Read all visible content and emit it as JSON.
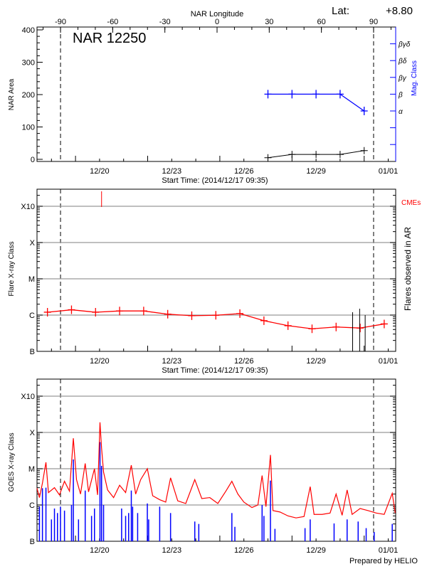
{
  "colors": {
    "axis": "#000000",
    "mag": "#0000ff",
    "flare": "#ff0000",
    "goes_long": "#ff0000",
    "goes_short": "#0000ff",
    "grid": "#999999"
  },
  "chart_data": [
    {
      "type": "line",
      "title": "NAR 12250",
      "top_axis_label": "NAR Longitude",
      "lat_label": "Lat:",
      "lat_value": "+8.80",
      "xlabel": "Start Time: (2014/12/17 09:35)",
      "ylabel": "NAR Area",
      "y2label": "Mag. Class",
      "ylim": [
        0,
        400
      ],
      "yticks": [
        "0",
        "100",
        "200",
        "300",
        "400"
      ],
      "xticks": [
        "12/20",
        "12/23",
        "12/26",
        "12/29",
        "01/01"
      ],
      "xtick_dates": [
        "2014-12-20T00:00",
        "2014-12-23T00:00",
        "2014-12-26T00:00",
        "2014-12-29T00:00",
        "2015-01-01T00:00"
      ],
      "lon_ticks": [
        "-90",
        "-60",
        "-30",
        "0",
        "30",
        "60",
        "90"
      ],
      "limb_longitudes": [
        -90,
        90
      ],
      "mag_classes": [
        "α",
        "β",
        "βγ",
        "βδ",
        "βγδ"
      ],
      "area_series": {
        "x": [
          "2014-12-27T00:00",
          "2014-12-28T00:00",
          "2014-12-29T00:00",
          "2014-12-30T00:00",
          "2014-12-31T00:00"
        ],
        "values": [
          5,
          15,
          15,
          15,
          27
        ]
      },
      "mag_series": {
        "x": [
          "2014-12-27T00:00",
          "2014-12-28T00:00",
          "2014-12-29T00:00",
          "2014-12-30T00:00",
          "2014-12-31T00:00"
        ],
        "values": [
          "β",
          "β",
          "β",
          "β",
          "α"
        ]
      }
    },
    {
      "type": "line",
      "xlabel": "Start Time: (2014/12/17 09:35)",
      "ylabel": "Flare X-ray Class",
      "y2label": "Flares observed in AR",
      "cme_label": "CMEs",
      "yscale": "log",
      "ylim": [
        1e-07,
        0.0016
      ],
      "yticks": [
        "B",
        "C",
        "M",
        "X",
        "X10"
      ],
      "ytick_values": [
        1e-07,
        1e-06,
        1e-05,
        0.0001,
        0.001
      ],
      "grid": true,
      "xticks": [
        "12/20",
        "12/23",
        "12/26",
        "12/29",
        "01/01"
      ],
      "flare_series": {
        "x": [
          "2014-12-17T20:00",
          "2014-12-18T20:00",
          "2014-12-19T20:00",
          "2014-12-20T20:00",
          "2014-12-21T20:00",
          "2014-12-22T20:00",
          "2014-12-23T20:00",
          "2014-12-24T20:00",
          "2014-12-25T20:00",
          "2014-12-26T20:00",
          "2014-12-27T20:00",
          "2014-12-28T20:00",
          "2014-12-29T20:00",
          "2014-12-30T20:00",
          "2014-12-31T20:00"
        ],
        "values": [
          1.2e-06,
          1.4e-06,
          1.2e-06,
          1.3e-06,
          1.3e-06,
          1.06e-06,
          9.6e-07,
          9.9e-07,
          1.1e-06,
          7e-07,
          5.1e-07,
          4.2e-07,
          4.7e-07,
          4.4e-07,
          5.7e-07
        ]
      },
      "cmes": [
        "2014-12-20T02:00"
      ],
      "flares_observed": {
        "x": [
          "2014-12-30T12:30",
          "2014-12-30T19:30",
          "2014-12-31T01:00"
        ],
        "values": [
          1.2e-06,
          1.5e-06,
          1e-06
        ]
      }
    },
    {
      "type": "line",
      "ylabel": "GOES X-ray Class",
      "yscale": "log",
      "ylim": [
        1e-07,
        0.0016
      ],
      "yticks": [
        "B",
        "C",
        "M",
        "X",
        "X10"
      ],
      "ytick_values": [
        1e-07,
        1e-06,
        1e-05,
        0.0001,
        0.001
      ],
      "grid": true,
      "xticks": [
        "12/20",
        "12/23",
        "12/26",
        "12/29",
        "01/01"
      ],
      "footer": "Prepared by HELIO",
      "long_channel": [
        [
          "2014-12-17T09:35",
          2.9e-06
        ],
        [
          "2014-12-17T12:00",
          1.6e-06
        ],
        [
          "2014-12-17T15:00",
          4e-06
        ],
        [
          "2014-12-17T18:30",
          1.5e-05
        ],
        [
          "2014-12-17T21:00",
          2.2e-06
        ],
        [
          "2014-12-18T03:00",
          3e-06
        ],
        [
          "2014-12-18T08:00",
          1.9e-06
        ],
        [
          "2014-12-18T13:00",
          4.5e-06
        ],
        [
          "2014-12-18T18:00",
          2.4e-06
        ],
        [
          "2014-12-18T21:50",
          6.9e-05
        ],
        [
          "2014-12-19T01:00",
          5e-06
        ],
        [
          "2014-12-19T05:00",
          2e-06
        ],
        [
          "2014-12-19T09:40",
          1.4e-05
        ],
        [
          "2014-12-19T13:00",
          2.3e-06
        ],
        [
          "2014-12-19T18:55",
          1e-05
        ],
        [
          "2014-12-19T22:00",
          1.9e-06
        ],
        [
          "2014-12-20T00:25",
          0.00019
        ],
        [
          "2014-12-20T02:00",
          3.7e-05
        ],
        [
          "2014-12-20T04:00",
          8e-06
        ],
        [
          "2014-12-20T08:00",
          2.6e-06
        ],
        [
          "2014-12-20T14:00",
          1.6e-06
        ],
        [
          "2014-12-20T20:00",
          3.5e-06
        ],
        [
          "2014-12-21T02:00",
          2.2e-06
        ],
        [
          "2014-12-21T07:40",
          1.25e-05
        ],
        [
          "2014-12-21T12:00",
          2e-06
        ],
        [
          "2014-12-21T17:00",
          5e-06
        ],
        [
          "2014-12-21T23:40",
          1e-05
        ],
        [
          "2014-12-22T05:00",
          1.8e-06
        ],
        [
          "2014-12-22T12:00",
          1.4e-06
        ],
        [
          "2014-12-22T18:00",
          1.2e-06
        ],
        [
          "2014-12-22T22:50",
          5.6e-06
        ],
        [
          "2014-12-23T06:00",
          1.3e-06
        ],
        [
          "2014-12-23T14:00",
          1.1e-06
        ],
        [
          "2014-12-23T23:00",
          5e-06
        ],
        [
          "2014-12-24T06:00",
          1.5e-06
        ],
        [
          "2014-12-24T14:00",
          1.6e-06
        ],
        [
          "2014-12-24T22:00",
          1.1e-06
        ],
        [
          "2014-12-25T06:00",
          2.4e-06
        ],
        [
          "2014-12-25T12:00",
          4.5e-06
        ],
        [
          "2014-12-25T18:00",
          2e-06
        ],
        [
          "2014-12-26T00:00",
          1.2e-06
        ],
        [
          "2014-12-26T08:00",
          8.5e-07
        ],
        [
          "2014-12-26T14:00",
          1e-06
        ],
        [
          "2014-12-26T18:10",
          6.5e-06
        ],
        [
          "2014-12-26T22:00",
          9e-07
        ],
        [
          "2014-12-27T02:30",
          2.4e-05
        ],
        [
          "2014-12-27T05:00",
          7e-07
        ],
        [
          "2014-12-27T12:00",
          6.4e-07
        ],
        [
          "2014-12-27T20:00",
          5e-07
        ],
        [
          "2014-12-28T04:00",
          4.4e-07
        ],
        [
          "2014-12-28T12:00",
          4.8e-07
        ],
        [
          "2014-12-28T18:10",
          3.2e-06
        ],
        [
          "2014-12-28T22:00",
          5.5e-07
        ],
        [
          "2014-12-29T06:00",
          5.5e-07
        ],
        [
          "2014-12-29T14:00",
          6e-07
        ],
        [
          "2014-12-29T20:00",
          2e-06
        ],
        [
          "2014-12-30T02:00",
          5.2e-07
        ],
        [
          "2014-12-30T07:00",
          2.6e-06
        ],
        [
          "2014-12-30T12:00",
          5.5e-07
        ],
        [
          "2014-12-30T20:00",
          8e-07
        ],
        [
          "2014-12-31T04:00",
          7e-07
        ],
        [
          "2014-12-31T12:00",
          6e-07
        ],
        [
          "2014-12-31T20:00",
          5.5e-07
        ],
        [
          "2015-01-01T04:00",
          2.1e-06
        ],
        [
          "2015-01-01T07:00",
          6e-07
        ]
      ],
      "short_channel": [
        [
          "2014-12-17T12:00",
          9e-07
        ],
        [
          "2014-12-17T15:00",
          2.9e-06
        ],
        [
          "2014-12-17T18:30",
          3e-06
        ],
        [
          "2014-12-18T00:00",
          4e-07
        ],
        [
          "2014-12-18T03:00",
          8e-07
        ],
        [
          "2014-12-18T06:00",
          6e-07
        ],
        [
          "2014-12-18T09:00",
          9e-07
        ],
        [
          "2014-12-18T13:00",
          7e-07
        ],
        [
          "2014-12-18T20:00",
          1e-06
        ],
        [
          "2014-12-18T21:50",
          1.8e-05
        ],
        [
          "2014-12-19T03:00",
          4e-07
        ],
        [
          "2014-12-19T09:40",
          2.5e-06
        ],
        [
          "2014-12-19T16:00",
          5e-07
        ],
        [
          "2014-12-19T18:55",
          8e-07
        ],
        [
          "2014-12-20T00:25",
          5.4e-05
        ],
        [
          "2014-12-20T02:00",
          1.2e-05
        ],
        [
          "2014-12-20T04:00",
          1e-06
        ],
        [
          "2014-12-20T22:00",
          8e-07
        ],
        [
          "2014-12-21T02:00",
          5e-07
        ],
        [
          "2014-12-21T05:00",
          6e-07
        ],
        [
          "2014-12-21T07:40",
          2.5e-06
        ],
        [
          "2014-12-21T09:00",
          9e-07
        ],
        [
          "2014-12-21T14:00",
          6e-07
        ],
        [
          "2014-12-21T23:40",
          1.1e-06
        ],
        [
          "2014-12-22T01:00",
          4e-07
        ],
        [
          "2014-12-22T12:00",
          9e-07
        ],
        [
          "2014-12-22T22:50",
          6e-07
        ],
        [
          "2014-12-23T23:00",
          3.5e-07
        ],
        [
          "2014-12-24T03:00",
          3e-07
        ],
        [
          "2014-12-25T12:00",
          6e-07
        ],
        [
          "2014-12-25T15:00",
          2.5e-07
        ],
        [
          "2014-12-26T18:10",
          1e-06
        ],
        [
          "2014-12-26T20:00",
          5e-07
        ],
        [
          "2014-12-27T02:30",
          4.7e-06
        ],
        [
          "2014-12-27T07:00",
          2.2e-07
        ],
        [
          "2014-12-28T13:00",
          2.3e-07
        ],
        [
          "2014-12-28T18:10",
          4e-07
        ],
        [
          "2014-12-29T18:00",
          3.1e-07
        ],
        [
          "2014-12-30T07:00",
          4e-07
        ],
        [
          "2014-12-30T18:00",
          3.5e-07
        ],
        [
          "2014-12-31T02:00",
          2.3e-07
        ],
        [
          "2014-12-31T10:00",
          1.8e-07
        ],
        [
          "2015-01-01T04:00",
          3e-07
        ]
      ]
    }
  ]
}
